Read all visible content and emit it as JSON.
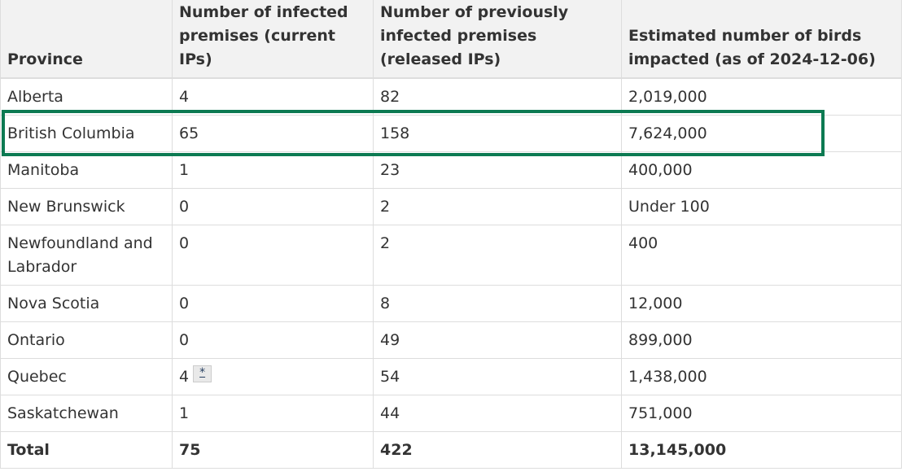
{
  "table": {
    "headers": [
      "Province",
      "Number of infected premises (current IPs)",
      "Number of previously infected premises (released IPs)",
      "Estimated number of birds impacted (as of 2024-12-06)"
    ],
    "rows": [
      [
        "Alberta",
        "4",
        "82",
        "2,019,000"
      ],
      [
        "British Columbia",
        "65",
        "158",
        "7,624,000"
      ],
      [
        "Manitoba",
        "1",
        "23",
        "400,000"
      ],
      [
        "New Brunswick",
        "0",
        "2",
        "Under 100"
      ],
      [
        "Newfoundland and Labrador",
        "0",
        "2",
        "400"
      ],
      [
        "Nova Scotia",
        "0",
        "8",
        "12,000"
      ],
      [
        "Ontario",
        "0",
        "49",
        "899,000"
      ],
      [
        "Quebec",
        "4",
        "54",
        "1,438,000"
      ],
      [
        "Saskatchewan",
        "1",
        "44",
        "751,000"
      ]
    ],
    "total": [
      "Total",
      "75",
      "422",
      "13,145,000"
    ],
    "footnote_marker": "*"
  },
  "highlight": {
    "row": "British Columbia",
    "color": "#0c7a52"
  }
}
